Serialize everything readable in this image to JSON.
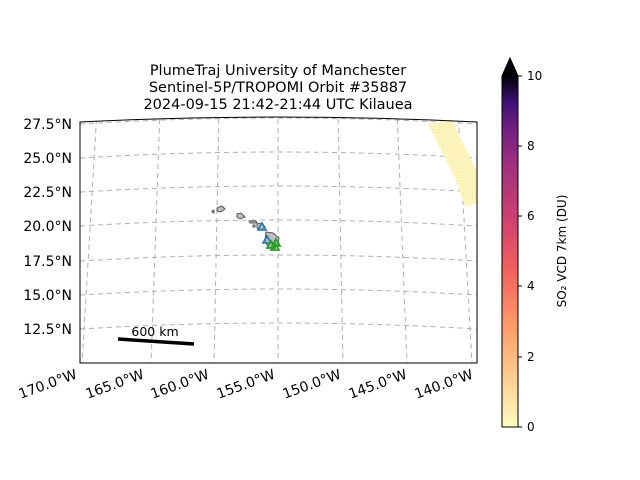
{
  "title": {
    "line1": "PlumeTraj    University of Manchester",
    "line2": "Sentinel-5P/TROPOMI Orbit #35887",
    "line3": "2024-09-15   21:42-21:44 UTC   Kilauea"
  },
  "map": {
    "lat_labels": [
      "27.5°N",
      "25.0°N",
      "22.5°N",
      "20.0°N",
      "17.5°N",
      "15.0°N",
      "12.5°N"
    ],
    "lon_labels": [
      "170.0°W",
      "165.0°W",
      "160.0°W",
      "155.0°W",
      "150.0°W",
      "145.0°W",
      "140.0°W"
    ],
    "scale_bar_label": "600 km",
    "plume_color": "#fef3a8",
    "coast_fill": "#bfbfbf",
    "volcano_marker_color": "#2ca02c",
    "station_marker_color": "#1f77b4",
    "gridlines": true
  },
  "colorbar": {
    "label": "SO₂ VCD 7km (DU)",
    "ticks": [
      "0",
      "2",
      "4",
      "6",
      "8",
      "10"
    ],
    "range": [
      0,
      10
    ],
    "extend": "max",
    "colormap": "magma_r"
  }
}
